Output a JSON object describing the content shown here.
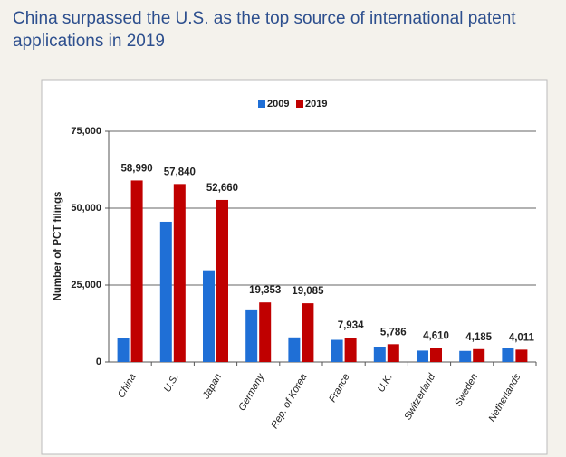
{
  "chart_data": {
    "type": "bar",
    "title": "China surpassed the U.S. as the top source of international patent applications in 2019",
    "y_label": "Number of PCT filings",
    "categories": [
      "China",
      "U.S.",
      "Japan",
      "Germany",
      "Rep. of Korea",
      "France",
      "U.K.",
      "Switzerland",
      "Sweden",
      "Netherlands"
    ],
    "series": [
      {
        "name": "2009",
        "color": "#1f6fd6",
        "values": [
          7900,
          45600,
          29800,
          16800,
          8000,
          7200,
          5000,
          3700,
          3600,
          4500
        ]
      },
      {
        "name": "2019",
        "color": "#c00000",
        "values": [
          58990,
          57840,
          52660,
          19353,
          19085,
          7934,
          5786,
          4610,
          4185,
          4011
        ],
        "value_labels": [
          "58,990",
          "57,840",
          "52,660",
          "19,353",
          "19,085",
          "7,934",
          "5,786",
          "4,610",
          "4,185",
          "4,011"
        ]
      }
    ],
    "ylim": [
      0,
      75000
    ],
    "yticks": [
      0,
      {
        "value": 25000,
        "label": "25,000"
      },
      {
        "value": 50000,
        "label": "50,000"
      },
      {
        "value": 75000,
        "label": "75,000"
      }
    ],
    "grid": true,
    "legend": "top"
  }
}
